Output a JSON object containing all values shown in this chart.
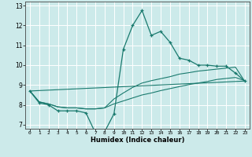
{
  "xlabel": "Humidex (Indice chaleur)",
  "xlim": [
    -0.5,
    23.5
  ],
  "ylim": [
    6.8,
    13.2
  ],
  "xticks": [
    0,
    1,
    2,
    3,
    4,
    5,
    6,
    7,
    8,
    9,
    10,
    11,
    12,
    13,
    14,
    15,
    16,
    17,
    18,
    19,
    20,
    21,
    22,
    23
  ],
  "yticks": [
    7,
    8,
    9,
    10,
    11,
    12,
    13
  ],
  "bg_color": "#cceaea",
  "grid_color": "#ffffff",
  "line_color": "#1a7a6e",
  "line1_x": [
    0,
    1,
    2,
    3,
    4,
    5,
    6,
    7,
    8,
    9,
    10,
    11,
    12,
    13,
    14,
    15,
    16,
    17,
    18,
    19,
    20,
    21,
    22,
    23
  ],
  "line1_y": [
    8.7,
    8.1,
    8.0,
    7.7,
    7.7,
    7.7,
    7.6,
    6.6,
    6.65,
    7.55,
    10.8,
    12.0,
    12.75,
    11.5,
    11.7,
    11.15,
    10.35,
    10.25,
    10.0,
    10.0,
    9.95,
    9.95,
    9.6,
    9.2
  ],
  "line2_x": [
    0,
    1,
    2,
    3,
    4,
    5,
    6,
    7,
    8,
    9,
    10,
    11,
    12,
    13,
    14,
    15,
    16,
    17,
    18,
    19,
    20,
    21,
    22,
    23
  ],
  "line2_y": [
    8.7,
    8.15,
    8.05,
    7.9,
    7.85,
    7.85,
    7.8,
    7.8,
    7.85,
    8.05,
    8.2,
    8.35,
    8.5,
    8.6,
    8.72,
    8.82,
    8.92,
    9.02,
    9.1,
    9.18,
    9.28,
    9.33,
    9.38,
    9.22
  ],
  "line3_x": [
    0,
    1,
    2,
    3,
    4,
    5,
    6,
    7,
    8,
    9,
    10,
    11,
    12,
    13,
    14,
    15,
    16,
    17,
    18,
    19,
    20,
    21,
    22,
    23
  ],
  "line3_y": [
    8.7,
    8.15,
    8.05,
    7.9,
    7.85,
    7.85,
    7.8,
    7.8,
    7.85,
    8.3,
    8.6,
    8.88,
    9.1,
    9.22,
    9.32,
    9.42,
    9.55,
    9.62,
    9.7,
    9.75,
    9.8,
    9.85,
    9.9,
    9.18
  ],
  "line4_x": [
    0,
    23
  ],
  "line4_y": [
    8.7,
    9.2
  ]
}
